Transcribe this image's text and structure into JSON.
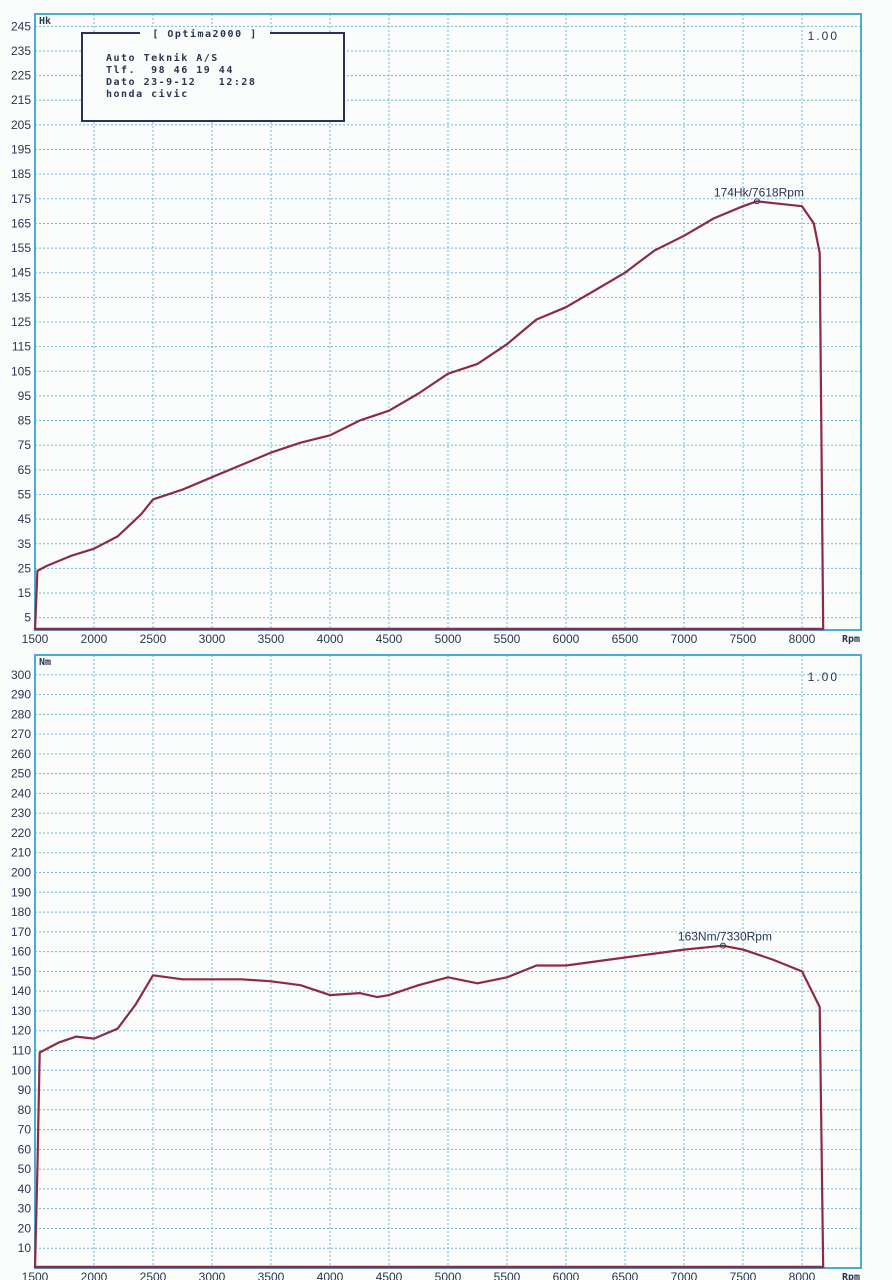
{
  "info_box": {
    "title": "[ Optima2000 ]",
    "lines": [
      "Auto Teknik A/S",
      "Tlf.  98 46 19 44",
      "Dato 23-9-12   12:28",
      "honda civic"
    ]
  },
  "colors": {
    "frame": "#4aaed0",
    "grid": "#6fb8d8",
    "curve": "#8e2a48",
    "text": "#2a3550"
  },
  "chart_data": [
    {
      "type": "line",
      "ylabel": "Hk",
      "xlabel": "Rpm",
      "scale_label": "1.00",
      "xlim": [
        1500,
        8500
      ],
      "ylim": [
        0,
        250
      ],
      "grid": true,
      "xticks": [
        1500,
        2000,
        2500,
        3000,
        3500,
        4000,
        4500,
        5000,
        5500,
        6000,
        6500,
        7000,
        7500,
        8000
      ],
      "yticks": [
        5,
        15,
        25,
        35,
        45,
        55,
        65,
        75,
        85,
        95,
        105,
        115,
        125,
        135,
        145,
        155,
        165,
        175,
        185,
        195,
        205,
        215,
        225,
        235,
        245
      ],
      "peak": {
        "x": 7618,
        "y": 174,
        "label": "174Hk/7618Rpm"
      },
      "series": [
        {
          "x": [
            1500,
            1520,
            1600,
            1800,
            2000,
            2200,
            2400,
            2500,
            2750,
            3000,
            3250,
            3500,
            3750,
            4000,
            4250,
            4500,
            4750,
            5000,
            5250,
            5500,
            5750,
            6000,
            6250,
            6500,
            6750,
            7000,
            7250,
            7500,
            7618,
            7800,
            8000,
            8100,
            8150,
            8180
          ],
          "y": [
            0,
            24,
            26,
            30,
            33,
            38,
            47,
            53,
            57,
            62,
            67,
            72,
            76,
            79,
            85,
            89,
            96,
            104,
            108,
            116,
            126,
            131,
            138,
            145,
            154,
            160,
            167,
            172,
            174,
            173,
            172,
            165,
            153,
            0
          ]
        }
      ]
    },
    {
      "type": "line",
      "ylabel": "Nm",
      "xlabel": "Rpm",
      "scale_label": "1.00",
      "xlim": [
        1500,
        8500
      ],
      "ylim": [
        0,
        310
      ],
      "grid": true,
      "xticks": [
        1500,
        2000,
        2500,
        3000,
        3500,
        4000,
        4500,
        5000,
        5500,
        6000,
        6500,
        7000,
        7500,
        8000
      ],
      "yticks": [
        10,
        20,
        30,
        40,
        50,
        60,
        70,
        80,
        90,
        100,
        110,
        120,
        130,
        140,
        150,
        160,
        170,
        180,
        190,
        200,
        210,
        220,
        230,
        240,
        250,
        260,
        270,
        280,
        290,
        300
      ],
      "peak": {
        "x": 7330,
        "y": 163,
        "label": "163Nm/7330Rpm"
      },
      "series": [
        {
          "x": [
            1500,
            1520,
            1540,
            1700,
            1850,
            2000,
            2200,
            2350,
            2500,
            2750,
            3000,
            3250,
            3500,
            3750,
            4000,
            4250,
            4400,
            4500,
            4750,
            5000,
            5250,
            5500,
            5750,
            6000,
            6250,
            6500,
            6750,
            7000,
            7330,
            7500,
            7750,
            8000,
            8150,
            8180
          ],
          "y": [
            0,
            50,
            109,
            114,
            117,
            116,
            121,
            133,
            148,
            146,
            146,
            146,
            145,
            143,
            138,
            139,
            137,
            138,
            143,
            147,
            144,
            147,
            153,
            153,
            155,
            157,
            159,
            161,
            163,
            161,
            156,
            150,
            132,
            0
          ]
        }
      ]
    }
  ]
}
